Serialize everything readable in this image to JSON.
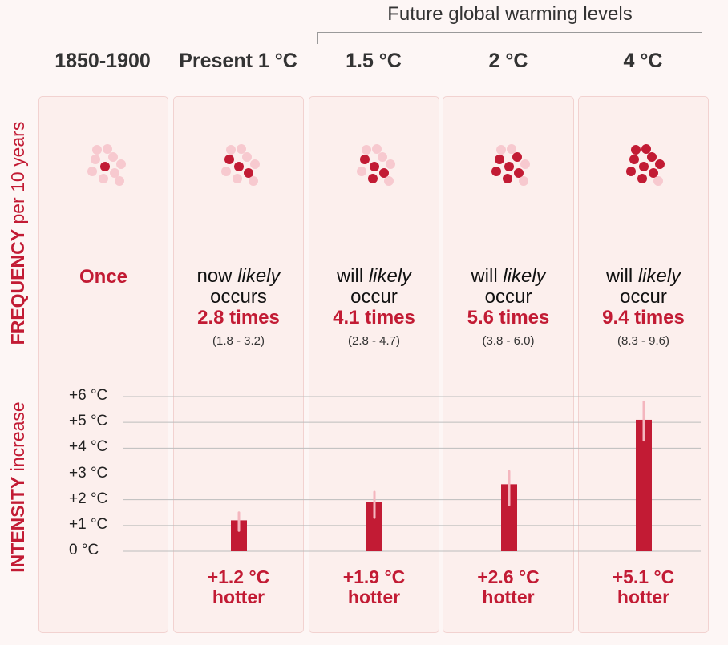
{
  "header": {
    "future_label": "Future global warming levels"
  },
  "columns": [
    {
      "label": "1850-1900"
    },
    {
      "label": "Present 1 °C"
    },
    {
      "label": "1.5 °C"
    },
    {
      "label": "2 °C"
    },
    {
      "label": "4 °C"
    }
  ],
  "side_labels": {
    "frequency_bold": "FREQUENCY",
    "frequency_rest": "per 10 years",
    "intensity_bold": "INTENSITY",
    "intensity_rest": "increase"
  },
  "frequency": {
    "baseline": "Once",
    "present": {
      "line1_pre": "now ",
      "line1_em": "likely",
      "line2": "occurs",
      "times": "2.8 times",
      "range": "(1.8 - 3.2)"
    },
    "w15": {
      "line1_pre": "will ",
      "line1_em": "likely",
      "line2": "occur",
      "times": "4.1 times",
      "range": "(2.8 - 4.7)"
    },
    "w2": {
      "line1_pre": "will ",
      "line1_em": "likely",
      "line2": "occur",
      "times": "5.6 times",
      "range": "(3.8 - 6.0)"
    },
    "w4": {
      "line1_pre": "will ",
      "line1_em": "likely",
      "line2": "occur",
      "times": "9.4 times",
      "range": "(8.3 - 9.6)"
    }
  },
  "hotter": {
    "present": {
      "value": "+1.2 °C",
      "word": "hotter"
    },
    "w15": {
      "value": "+1.9 °C",
      "word": "hotter"
    },
    "w2": {
      "value": "+2.6 °C",
      "word": "hotter"
    },
    "w4": {
      "value": "+5.1 °C",
      "word": "hotter"
    }
  },
  "colors": {
    "accent": "#c21b34",
    "dot_dark": "#c21b34",
    "dot_light": "#f7c9cf",
    "error_bar": "#f4b6be",
    "grid": "#bdbdbd",
    "card_bg": "#fcefed",
    "card_border": "#f2d2d0"
  },
  "chart_data": [
    {
      "type": "dots",
      "categories": [
        "1850-1900",
        "Present 1 °C",
        "1.5 °C",
        "2 °C",
        "4 °C"
      ],
      "total_dots": 10,
      "dark_dots": [
        1,
        3,
        4,
        6,
        9
      ]
    },
    {
      "type": "bar",
      "categories": [
        "Present 1 °C",
        "1.5 °C",
        "2 °C",
        "4 °C"
      ],
      "values": [
        1.2,
        1.9,
        2.6,
        5.1
      ],
      "error_low": [
        0.8,
        1.3,
        1.8,
        4.3
      ],
      "error_high": [
        1.5,
        2.3,
        3.1,
        5.8
      ],
      "ylim": [
        0,
        6
      ],
      "yticks": [
        "+6 °C",
        "+5 °C",
        "+4 °C",
        "+3 °C",
        "+2 °C",
        "+1 °C",
        "0 °C"
      ],
      "grid": true
    }
  ]
}
